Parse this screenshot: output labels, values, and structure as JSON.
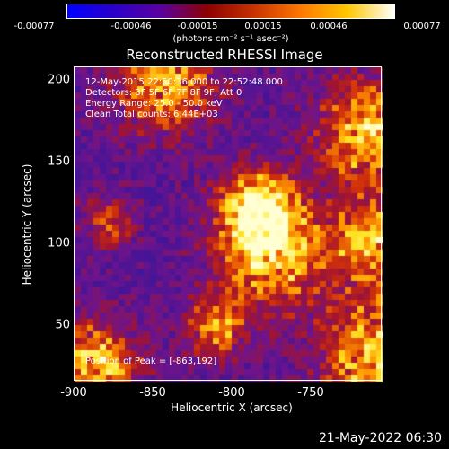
{
  "colorbar": {
    "colors": [
      "#0000ff",
      "#2a00c8",
      "#5a00a0",
      "#8c0000",
      "#c83200",
      "#ff7800",
      "#ffc800",
      "#ffffff"
    ],
    "ticks": [
      "-0.00077",
      "-0.00046",
      "-0.00015",
      "0.00015",
      "0.00046",
      "0.00077"
    ],
    "units": "(photons cm⁻² s⁻¹ asec⁻²)"
  },
  "title": "Reconstructed RHESSI Image",
  "annotations": {
    "time": "12-May-2015 22:50:36.000 to 22:52:48.000",
    "detectors": "Detectors: 3F 5F 6F 7F 8F 9F, Att 0",
    "energy": "Energy Range: 25.0 - 50.0 keV",
    "clean": "Clean    Total counts: 6.44E+03",
    "peak": "Position of Peak = [-863,192]"
  },
  "axes": {
    "xlabel": "Heliocentric X (arcsec)",
    "ylabel": "Heliocentric Y (arcsec)",
    "xticks": [
      "-900",
      "-850",
      "-800",
      "-750"
    ],
    "yticks": [
      "200",
      "150",
      "100",
      "50"
    ],
    "xrange": [
      -905,
      -712
    ],
    "yrange": [
      15,
      207
    ]
  },
  "footer": {
    "timestamp": "21-May-2022 06:30"
  }
}
